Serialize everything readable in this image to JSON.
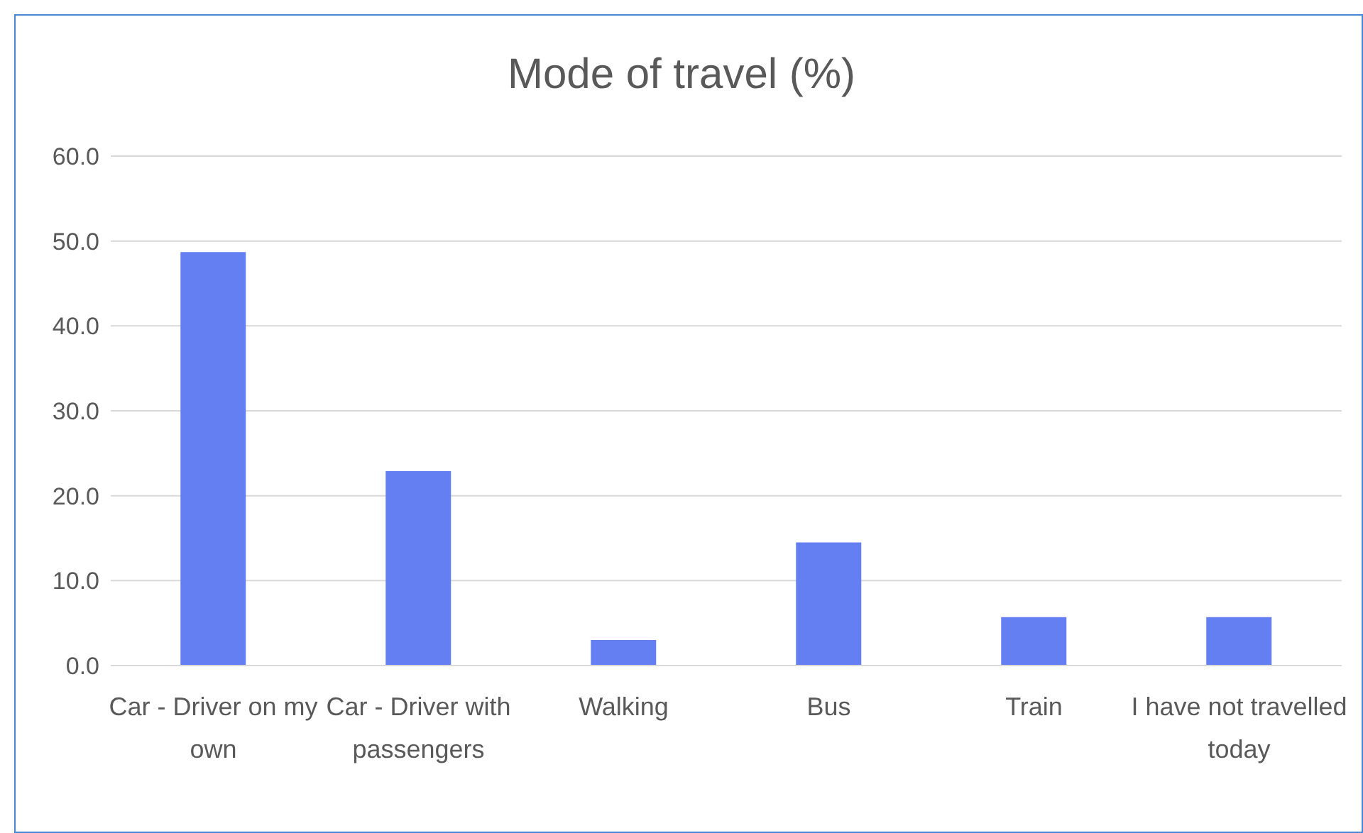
{
  "chart_data": {
    "type": "bar",
    "title": "Mode of travel (%)",
    "categories": [
      "Car - Driver on my own",
      "Car - Driver with passengers",
      "Walking",
      "Bus",
      "Train",
      "I have not travelled today"
    ],
    "values": [
      48.7,
      22.9,
      3.0,
      14.5,
      5.7,
      5.7
    ],
    "color": "#637ff2",
    "ylim": [
      0,
      60
    ],
    "yticks": [
      {
        "value": 0,
        "label": "0.0"
      },
      {
        "value": 10,
        "label": "10.0"
      },
      {
        "value": 20,
        "label": "20.0"
      },
      {
        "value": 30,
        "label": "30.0"
      },
      {
        "value": 40,
        "label": "40.0"
      },
      {
        "value": 50,
        "label": "50.0"
      },
      {
        "value": 60,
        "label": "60.0"
      }
    ],
    "grid": "y",
    "legend": false
  }
}
